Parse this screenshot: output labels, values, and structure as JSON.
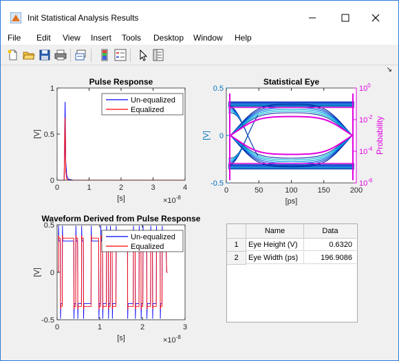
{
  "window": {
    "title": "Init Statistical Analysis Results",
    "minimize_icon": "minimize-icon",
    "maximize_icon": "maximize-icon",
    "close_icon": "close-icon"
  },
  "menu": {
    "items": [
      "File",
      "Edit",
      "View",
      "Insert",
      "Tools",
      "Desktop",
      "Window",
      "Help"
    ]
  },
  "toolbar": {
    "icons": [
      "new-figure-icon",
      "open-file-icon",
      "save-icon",
      "print-icon",
      "link-plot-icon",
      "insert-colorbar-icon",
      "insert-legend-icon",
      "pointer-icon",
      "property-editor-icon"
    ]
  },
  "colors": {
    "blue": "#0000ff",
    "red": "#ff0000",
    "magenta": "#e000e0",
    "axis_blue": "#0072bd"
  },
  "chart_data": [
    {
      "type": "line",
      "title": "Pulse Response",
      "xlabel": "[s]",
      "ylabel": "[V]",
      "x_exponent": "×10",
      "x_exponent_power": "-8",
      "xlim": [
        0,
        4
      ],
      "ylim": [
        0,
        1
      ],
      "xticks": [
        "0",
        "1",
        "2",
        "3",
        "4"
      ],
      "yticks": [
        "0",
        "0.5",
        "1"
      ],
      "legend": {
        "position": "top-right"
      },
      "series": [
        {
          "name": "Un-equalized",
          "x": [
            0,
            0.22,
            0.25,
            0.27,
            0.3,
            0.35,
            0.5,
            4
          ],
          "y": [
            0,
            0,
            0.85,
            0.2,
            0.05,
            0.01,
            0,
            0
          ]
        },
        {
          "name": "Equalized",
          "x": [
            0,
            0.22,
            0.25,
            0.27,
            0.3,
            0.35,
            0.5,
            4
          ],
          "y": [
            0,
            0,
            0.68,
            0.1,
            0.01,
            0,
            0,
            0
          ]
        }
      ]
    },
    {
      "type": "heatmap",
      "title": "Statistical Eye",
      "xlabel": "[ps]",
      "ylabel": "[V]",
      "ylabel_right": "Probability",
      "xlim": [
        0,
        200
      ],
      "ylim": [
        -0.5,
        0.5
      ],
      "xticks": [
        "0",
        "50",
        "100",
        "150",
        "200"
      ],
      "yticks": [
        "-0.5",
        "0",
        "0.5"
      ],
      "yticks_right": [
        "10",
        "10",
        "10",
        "10"
      ],
      "yticks_right_powers": [
        "0",
        "-2",
        "-4",
        "-6"
      ]
    },
    {
      "type": "line",
      "title": "Waveform Derived from Pulse Response",
      "xlabel": "[s]",
      "ylabel": "[V]",
      "x_exponent": "×10",
      "x_exponent_power": "-8",
      "xlim": [
        0,
        3
      ],
      "ylim": [
        -0.5,
        0.5
      ],
      "xticks": [
        "0",
        "1",
        "2",
        "3"
      ],
      "yticks": [
        "-0.5",
        "0",
        "0.5"
      ],
      "legend": {
        "position": "top-right"
      },
      "series": [
        {
          "name": "Un-equalized"
        },
        {
          "name": "Equalized"
        }
      ]
    }
  ],
  "table": {
    "columns": [
      "Name",
      "Data"
    ],
    "rows": [
      {
        "index": "1",
        "name": "Eye Height (V)",
        "data": "0.6320"
      },
      {
        "index": "2",
        "name": "Eye Width (ps)",
        "data": "196.9086"
      }
    ]
  }
}
